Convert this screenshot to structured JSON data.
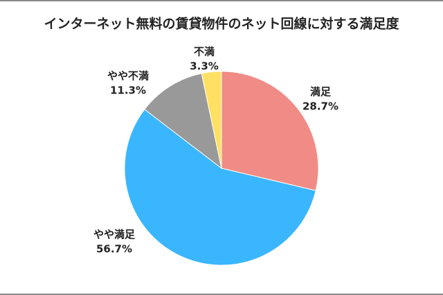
{
  "chart_data": {
    "type": "pie",
    "title": "インターネット無料の賃貸物件のネット回線に対する満足度",
    "categories": [
      "満足",
      "やや満足",
      "やや不満",
      "不満"
    ],
    "values": [
      28.7,
      56.7,
      11.3,
      3.3
    ],
    "value_labels": [
      "28.7%",
      "56.7%",
      "11.3%",
      "3.3%"
    ],
    "colors": [
      "#f08c85",
      "#3ab6ff",
      "#999999",
      "#ffe063"
    ]
  }
}
